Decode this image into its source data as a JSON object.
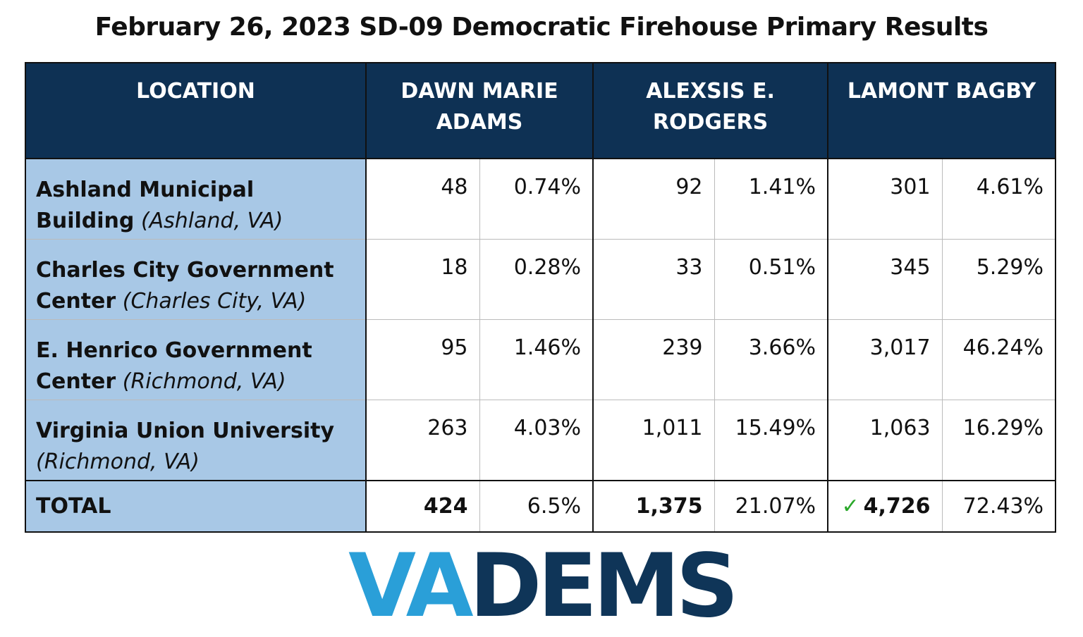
{
  "title": "February 26, 2023 SD-09 Democratic Firehouse Primary Results",
  "table": {
    "headers": [
      "LOCATION",
      "DAWN MARIE ADAMS",
      "ALEXSIS E. RODGERS",
      "LAMONT BAGBY"
    ],
    "rows": [
      {
        "location": "Ashland Municipal Building",
        "place": "(Ashland, VA)",
        "cells": [
          "48",
          "0.74%",
          "92",
          "1.41%",
          "301",
          "4.61%"
        ]
      },
      {
        "location": "Charles City Government Center",
        "place": "(Charles City, VA)",
        "cells": [
          "18",
          "0.28%",
          "33",
          "0.51%",
          "345",
          "5.29%"
        ]
      },
      {
        "location": "E. Henrico Government Center",
        "place": "(Richmond, VA)",
        "cells": [
          "95",
          "1.46%",
          "239",
          "3.66%",
          "3,017",
          "46.24%"
        ]
      },
      {
        "location": "Virginia Union University",
        "place": "(Richmond, VA)",
        "cells": [
          "263",
          "4.03%",
          "1,011",
          "15.49%",
          "1,063",
          "16.29%"
        ]
      }
    ],
    "total": {
      "label": "TOTAL",
      "cells": [
        "424",
        "6.5%",
        "1,375",
        "21.07%",
        "4,726",
        "72.43%"
      ]
    }
  },
  "logo": {
    "left": "VA",
    "right": "DEMS"
  }
}
